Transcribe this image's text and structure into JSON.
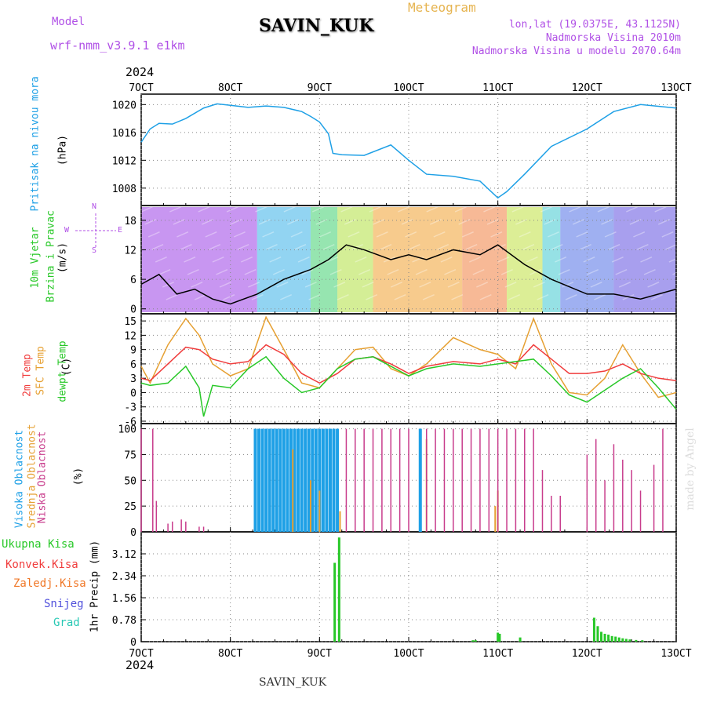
{
  "header": {
    "model_label": "Model",
    "model_name": "wrf-nmm_v3.9.1  e1km",
    "title": "Meteogram",
    "station": "SAVIN_KUK",
    "lonlat": "lon,lat (19.0375E, 43.1125N)",
    "altitude": "Nadmorska Visina 2010m",
    "model_altitude": "Nadmorska Visina u modelu 2070.64m",
    "year_top": "2024",
    "year_bottom": "2024",
    "footer_station": "SAVIN_KUK",
    "watermark": "made by Angel"
  },
  "colors": {
    "pressure": "#1ea0e6",
    "temp2m": "#f03c3c",
    "sfc_temp": "#e6a032",
    "dewpt": "#28c828",
    "high_cloud": "#1ea0e6",
    "mid_cloud": "#e6a032",
    "low_cloud": "#c83c8c",
    "total_precip": "#28c828",
    "conv_precip": "#f03c3c",
    "frozen_precip": "#f07828",
    "snow": "#5050dc",
    "hail": "#28c8b4"
  },
  "chart_data": [
    {
      "type": "line",
      "name": "pressure",
      "labels": {
        "title_left": "Pritisak na nivou mora",
        "unit": "(hPa)"
      },
      "x_ticks": [
        "7OCT",
        "8OCT",
        "9OCT",
        "10OCT",
        "11OCT",
        "12OCT",
        "13OCT"
      ],
      "ylim": [
        1005.5,
        1021.5
      ],
      "y_ticks": [
        1008,
        1012,
        1016,
        1020
      ],
      "series": [
        {
          "x": [
            7.0,
            7.1,
            7.2,
            7.35,
            7.5,
            7.7,
            7.85,
            8.0,
            8.2,
            8.4,
            8.6,
            8.8,
            8.9,
            9.0,
            9.1,
            9.15,
            9.25,
            9.5,
            9.8,
            10.0,
            10.2,
            10.5,
            10.8,
            11.0,
            11.1,
            11.3,
            11.6,
            12.0,
            12.3,
            12.6,
            13.0
          ],
          "y": [
            1014.6,
            1016.5,
            1017.3,
            1017.2,
            1018.0,
            1019.5,
            1020.1,
            1019.9,
            1019.6,
            1019.8,
            1019.6,
            1019.0,
            1018.3,
            1017.5,
            1015.8,
            1013.0,
            1012.8,
            1012.7,
            1014.2,
            1012.0,
            1010.0,
            1009.7,
            1009.0,
            1006.6,
            1007.5,
            1010.0,
            1014.0,
            1016.5,
            1019.0,
            1020.0,
            1019.5
          ]
        }
      ]
    },
    {
      "type": "line",
      "name": "wind",
      "labels": {
        "title_left": "10m Vjetar",
        "title_left2": "Brzina i Pravac",
        "unit": "(m/s)",
        "compass_n": "N",
        "compass_s": "S",
        "compass_w": "W",
        "compass_e": "E"
      },
      "ylim": [
        -1,
        21
      ],
      "y_ticks": [
        0,
        6,
        12,
        18
      ],
      "series": [
        {
          "x": [
            7.0,
            7.2,
            7.4,
            7.6,
            7.8,
            8.0,
            8.3,
            8.6,
            8.9,
            9.1,
            9.3,
            9.5,
            9.8,
            10.0,
            10.2,
            10.5,
            10.8,
            11.0,
            11.3,
            11.6,
            12.0,
            12.3,
            12.6,
            13.0
          ],
          "y": [
            5,
            7,
            3,
            4,
            2,
            1,
            3,
            6,
            8,
            10,
            13,
            12,
            10,
            11,
            10,
            12,
            11,
            13,
            9,
            6,
            3,
            3,
            2,
            4
          ]
        }
      ]
    },
    {
      "type": "line",
      "name": "temperature",
      "labels": {
        "t2m": "2m Temp",
        "sfc": "SFC Temp",
        "dewpt": "dewpt Temp",
        "unit": "(C)"
      },
      "ylim": [
        -6.5,
        16.5
      ],
      "y_ticks": [
        -6,
        -3,
        0,
        3,
        6,
        9,
        12,
        15
      ],
      "series": [
        {
          "name": "2m Temp",
          "x": [
            7.0,
            7.1,
            7.3,
            7.5,
            7.65,
            7.8,
            8.0,
            8.2,
            8.4,
            8.6,
            8.8,
            9.0,
            9.2,
            9.4,
            9.6,
            9.8,
            10.0,
            10.2,
            10.5,
            10.8,
            11.0,
            11.2,
            11.4,
            11.6,
            11.8,
            12.0,
            12.2,
            12.4,
            12.6,
            12.8,
            13.0
          ],
          "y": [
            3,
            2.5,
            6,
            9.5,
            9,
            7,
            6,
            6.5,
            10,
            8,
            4,
            2,
            4,
            7,
            7.5,
            6,
            4,
            5.5,
            6.5,
            6,
            7,
            6,
            10,
            7,
            4,
            4,
            4.5,
            6,
            4,
            3,
            2.5
          ]
        },
        {
          "name": "SFC Temp",
          "x": [
            7.0,
            7.1,
            7.3,
            7.5,
            7.65,
            7.8,
            8.0,
            8.2,
            8.4,
            8.6,
            8.8,
            9.0,
            9.2,
            9.4,
            9.6,
            9.8,
            10.0,
            10.2,
            10.5,
            10.8,
            11.0,
            11.2,
            11.4,
            11.6,
            11.8,
            12.0,
            12.2,
            12.4,
            12.6,
            12.8,
            13.0
          ],
          "y": [
            5.5,
            2,
            10,
            15.5,
            12,
            6,
            3.5,
            5,
            15.8,
            9,
            2,
            1,
            5,
            9,
            9.5,
            5,
            3.5,
            6,
            11.5,
            9,
            8,
            5,
            15.5,
            6,
            0,
            -0.5,
            3,
            10,
            4,
            -1,
            0
          ]
        },
        {
          "name": "dewpt Temp",
          "x": [
            7.0,
            7.1,
            7.3,
            7.5,
            7.65,
            7.7,
            7.8,
            8.0,
            8.2,
            8.4,
            8.6,
            8.8,
            9.0,
            9.2,
            9.4,
            9.6,
            9.8,
            10.0,
            10.2,
            10.5,
            10.8,
            11.0,
            11.2,
            11.4,
            11.6,
            11.8,
            12.0,
            12.2,
            12.4,
            12.6,
            12.8,
            13.0
          ],
          "y": [
            2,
            1.5,
            2,
            5.5,
            1,
            -5,
            1.5,
            1,
            5,
            7.5,
            3,
            0,
            1,
            5,
            7,
            7.5,
            5.5,
            3.5,
            5,
            6,
            5.5,
            6,
            6.5,
            7,
            3.5,
            -0.5,
            -2,
            0.5,
            3,
            5,
            1,
            -3.5
          ]
        }
      ]
    },
    {
      "type": "bar",
      "name": "clouds",
      "labels": {
        "high": "Visoka Oblacnost",
        "mid": "Srednja Oblacnost",
        "low": "Niska Oblacnost",
        "unit": "(%)"
      },
      "ylim": [
        0,
        105
      ],
      "y_ticks": [
        0,
        25,
        50,
        75,
        100
      ],
      "high_x": [
        8.28,
        8.32,
        8.36,
        8.4,
        8.44,
        8.48,
        8.52,
        8.56,
        8.6,
        8.64,
        8.68,
        8.72,
        8.76,
        8.8,
        8.84,
        8.88,
        8.92,
        8.96,
        9.0,
        9.04,
        9.08,
        9.12,
        9.16,
        9.2,
        10.13
      ],
      "high_y": [
        100,
        100,
        100,
        100,
        100,
        100,
        100,
        100,
        100,
        100,
        100,
        100,
        100,
        100,
        100,
        100,
        100,
        100,
        100,
        100,
        100,
        100,
        100,
        100,
        100
      ],
      "mid_x": [
        8.7,
        8.9,
        9.0,
        9.23,
        10.2,
        10.97,
        11.0
      ],
      "mid_y": [
        80,
        50,
        40,
        20,
        90,
        25,
        40
      ],
      "low_x": [
        7.0,
        7.13,
        7.17,
        7.3,
        7.35,
        7.45,
        7.5,
        7.65,
        7.7,
        9.3,
        9.4,
        9.5,
        9.6,
        9.7,
        9.8,
        9.9,
        10.0,
        10.2,
        10.3,
        10.4,
        10.5,
        10.6,
        10.7,
        10.8,
        10.9,
        11.0,
        11.1,
        11.2,
        11.3,
        11.4,
        11.5,
        11.6,
        11.7,
        12.0,
        12.1,
        12.2,
        12.3,
        12.4,
        12.5,
        12.6,
        12.75,
        12.85
      ],
      "low_y": [
        100,
        100,
        30,
        8,
        10,
        12,
        10,
        5,
        5,
        100,
        100,
        100,
        100,
        100,
        100,
        100,
        100,
        100,
        100,
        100,
        100,
        100,
        100,
        100,
        100,
        100,
        100,
        100,
        100,
        100,
        60,
        35,
        35,
        75,
        90,
        50,
        85,
        70,
        60,
        40,
        65,
        100
      ]
    },
    {
      "type": "bar",
      "name": "precip",
      "labels": {
        "total": "Ukupna Kisa",
        "conv": "Konvek.Kisa",
        "frozen": "Zaledj.Kisa",
        "snow": "Snijeg",
        "hail": "Grad",
        "unit": "1hr Precip (mm)"
      },
      "ylim": [
        0,
        3.9
      ],
      "y_ticks": [
        0,
        0.78,
        1.56,
        2.34,
        3.12
      ],
      "total_x": [
        9.17,
        9.22,
        10.72,
        10.75,
        11.0,
        11.02,
        11.25,
        12.08,
        12.12,
        12.16,
        12.2,
        12.24,
        12.28,
        12.32,
        12.36,
        12.4,
        12.44,
        12.48,
        12.55,
        12.62
      ],
      "total_y": [
        2.8,
        3.7,
        0.05,
        0.05,
        0.32,
        0.28,
        0.15,
        0.85,
        0.55,
        0.35,
        0.28,
        0.25,
        0.2,
        0.18,
        0.15,
        0.12,
        0.1,
        0.08,
        0.06,
        0.05
      ]
    }
  ]
}
